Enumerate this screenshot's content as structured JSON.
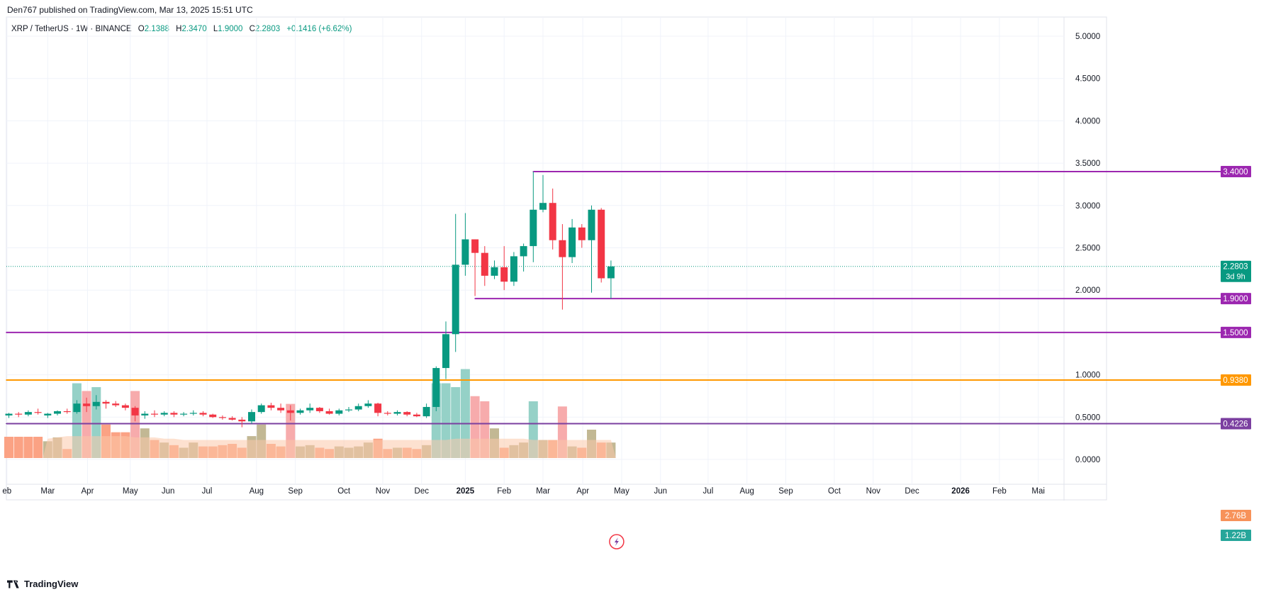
{
  "header": {
    "publisher_line": "Den767 published on TradingView.com, Mar 13, 2025 15:51 UTC"
  },
  "legend": {
    "symbol": "XRP / TetherUS · 1W · BINANCE",
    "open_label": "O",
    "open": "2.1388",
    "high_label": "H",
    "high": "2.3470",
    "low_label": "L",
    "low": "1.9000",
    "close_label": "C",
    "close": "2.2803",
    "change": "+0.1416 (+6.62%)"
  },
  "footer": {
    "brand": "TradingView"
  },
  "colors": {
    "up": "#089981",
    "down": "#f23645",
    "vol_up": "#8fcfc4",
    "vol_down": "#f7a6a8",
    "vol_up_dim": "#bfb48e",
    "vol_down_dim": "#fb9d7d",
    "vol_ma_fill": "#fcc8a9",
    "purple": "#9c27b0",
    "dark_purple": "#7b3fa0",
    "orange": "#ff9800",
    "grid": "#f0f3fa"
  },
  "chart_data": {
    "type": "candlestick",
    "title": "XRP / TetherUS · 1W · BINANCE",
    "ylim": [
      -0.5,
      5.3
    ],
    "y_ticks": [
      "5.0000",
      "4.5000",
      "4.0000",
      "3.5000",
      "3.0000",
      "2.5000",
      "2.0000",
      "1.0000",
      "0.5000",
      "0.0000"
    ],
    "y_tick_values": [
      5.0,
      4.5,
      4.0,
      3.5,
      3.0,
      2.5,
      2.0,
      1.0,
      0.5,
      0.0
    ],
    "x_labels": [
      "eb",
      "Mar",
      "Apr",
      "May",
      "Jun",
      "Jul",
      "Aug",
      "Sep",
      "Oct",
      "Nov",
      "Dec",
      "2025",
      "Feb",
      "Mar",
      "Apr",
      "May",
      "Jun",
      "Jul",
      "Aug",
      "Sep",
      "Oct",
      "Nov",
      "Dec",
      "2026",
      "Feb",
      "Mai"
    ],
    "x_label_bold": [
      false,
      false,
      false,
      false,
      false,
      false,
      false,
      false,
      false,
      false,
      false,
      true,
      false,
      false,
      false,
      false,
      false,
      false,
      false,
      false,
      false,
      false,
      false,
      true,
      false,
      false
    ],
    "x_label_week_index": [
      -4.2,
      0,
      4.1,
      8.5,
      12.4,
      16.4,
      21.5,
      25.5,
      30.5,
      34.5,
      38.5,
      43,
      47,
      51,
      55.1,
      59.1,
      63.1,
      68,
      72,
      76,
      81,
      85,
      89,
      94,
      98,
      102
    ],
    "candles": [
      [
        0.52,
        0.55,
        0.49,
        0.54
      ],
      [
        0.54,
        0.58,
        0.52,
        0.57
      ],
      [
        0.57,
        0.6,
        0.54,
        0.56
      ],
      [
        0.56,
        0.7,
        0.54,
        0.66
      ],
      [
        0.66,
        0.73,
        0.56,
        0.63
      ],
      [
        0.63,
        0.76,
        0.59,
        0.68
      ],
      [
        0.68,
        0.7,
        0.6,
        0.66
      ],
      [
        0.66,
        0.69,
        0.62,
        0.64
      ],
      [
        0.64,
        0.66,
        0.58,
        0.61
      ],
      [
        0.61,
        0.63,
        0.45,
        0.52
      ],
      [
        0.52,
        0.57,
        0.48,
        0.54
      ],
      [
        0.54,
        0.58,
        0.5,
        0.53
      ],
      [
        0.53,
        0.57,
        0.51,
        0.55
      ],
      [
        0.55,
        0.57,
        0.5,
        0.53
      ],
      [
        0.53,
        0.56,
        0.51,
        0.54
      ],
      [
        0.54,
        0.58,
        0.52,
        0.55
      ],
      [
        0.55,
        0.57,
        0.51,
        0.53
      ],
      [
        0.53,
        0.54,
        0.49,
        0.5
      ],
      [
        0.5,
        0.52,
        0.47,
        0.49
      ],
      [
        0.49,
        0.51,
        0.46,
        0.47
      ],
      [
        0.47,
        0.5,
        0.38,
        0.45
      ],
      [
        0.45,
        0.59,
        0.42,
        0.56
      ],
      [
        0.56,
        0.66,
        0.54,
        0.64
      ],
      [
        0.64,
        0.67,
        0.58,
        0.61
      ],
      [
        0.61,
        0.66,
        0.55,
        0.58
      ],
      [
        0.58,
        0.64,
        0.46,
        0.55
      ],
      [
        0.55,
        0.6,
        0.53,
        0.58
      ],
      [
        0.58,
        0.66,
        0.55,
        0.61
      ],
      [
        0.61,
        0.62,
        0.55,
        0.57
      ],
      [
        0.57,
        0.6,
        0.53,
        0.54
      ],
      [
        0.54,
        0.6,
        0.52,
        0.58
      ],
      [
        0.58,
        0.62,
        0.56,
        0.59
      ],
      [
        0.59,
        0.66,
        0.57,
        0.63
      ],
      [
        0.63,
        0.7,
        0.61,
        0.66
      ],
      [
        0.66,
        0.67,
        0.51,
        0.55
      ],
      [
        0.55,
        0.57,
        0.52,
        0.54
      ],
      [
        0.54,
        0.58,
        0.52,
        0.56
      ],
      [
        0.56,
        0.57,
        0.51,
        0.53
      ],
      [
        0.53,
        0.55,
        0.5,
        0.51
      ],
      [
        0.51,
        0.66,
        0.49,
        0.62
      ],
      [
        0.62,
        1.1,
        0.57,
        1.08
      ],
      [
        1.08,
        1.63,
        0.95,
        1.48
      ],
      [
        1.48,
        2.9,
        1.27,
        2.3
      ],
      [
        2.3,
        2.91,
        2.17,
        2.6
      ],
      [
        2.6,
        2.6,
        1.93,
        2.44
      ],
      [
        2.44,
        2.52,
        2.05,
        2.17
      ],
      [
        2.17,
        2.35,
        2.13,
        2.27
      ],
      [
        2.27,
        2.52,
        2.0,
        2.1
      ],
      [
        2.1,
        2.45,
        2.05,
        2.4
      ],
      [
        2.4,
        2.55,
        2.22,
        2.52
      ],
      [
        2.52,
        3.4,
        2.33,
        2.95
      ],
      [
        2.95,
        3.36,
        2.92,
        3.03
      ],
      [
        3.03,
        3.2,
        2.48,
        2.59
      ],
      [
        2.59,
        2.78,
        1.77,
        2.39
      ],
      [
        2.39,
        2.84,
        2.32,
        2.74
      ],
      [
        2.74,
        2.78,
        2.5,
        2.59
      ],
      [
        2.59,
        3.0,
        1.97,
        2.95
      ],
      [
        2.95,
        2.97,
        2.09,
        2.14
      ],
      [
        2.14,
        2.35,
        1.9,
        2.28
      ]
    ],
    "volume_scale_max": 0.55,
    "volumes_norm": [
      0.13,
      0.16,
      0.07,
      0.58,
      0.52,
      0.55,
      0.26,
      0.2,
      0.2,
      0.52,
      0.23,
      0.14,
      0.12,
      0.1,
      0.08,
      0.12,
      0.09,
      0.09,
      0.1,
      0.11,
      0.08,
      0.17,
      0.26,
      0.11,
      0.09,
      0.42,
      0.09,
      0.1,
      0.08,
      0.07,
      0.09,
      0.08,
      0.09,
      0.12,
      0.15,
      0.07,
      0.08,
      0.08,
      0.07,
      0.1,
      0.58,
      0.58,
      0.55,
      0.69,
      0.48,
      0.44,
      0.23,
      0.08,
      0.1,
      0.12,
      0.44,
      0.14,
      0.14,
      0.4,
      0.09,
      0.08,
      0.22,
      0.12,
      0.12
    ],
    "volume_ma_norm": [
      0.15,
      0.16,
      0.17,
      0.17,
      0.17,
      0.17,
      0.17,
      0.17,
      0.17,
      0.16,
      0.16,
      0.16,
      0.15,
      0.15,
      0.14,
      0.14,
      0.14,
      0.14,
      0.14,
      0.14,
      0.14,
      0.14,
      0.14,
      0.14,
      0.14,
      0.14,
      0.14,
      0.14,
      0.14,
      0.14,
      0.14,
      0.14,
      0.14,
      0.14,
      0.14,
      0.14,
      0.14,
      0.14,
      0.14,
      0.14,
      0.14,
      0.14,
      0.15,
      0.15,
      0.15,
      0.15,
      0.15,
      0.15,
      0.15,
      0.15,
      0.14,
      0.14,
      0.14,
      0.14,
      0.14,
      0.14,
      0.14,
      0.14,
      0.14
    ],
    "levels": [
      {
        "value": 3.4,
        "label": "3.4000",
        "color": "#9c27b0",
        "start_week": 50
      },
      {
        "value": 1.9,
        "label": "1.9000",
        "color": "#9c27b0",
        "start_week": 44
      },
      {
        "value": 1.5,
        "label": "1.5000",
        "color": "#9c27b0",
        "start_week": -7
      },
      {
        "value": 0.938,
        "label": "0.9380",
        "color": "#ff9800",
        "start_week": -7
      },
      {
        "value": 0.4226,
        "label": "0.4226",
        "color": "#7b3fa0",
        "start_week": -7
      }
    ],
    "current_price": {
      "value": 2.2803,
      "label": "2.2803",
      "countdown": "3d 9h"
    },
    "volume_labels": [
      {
        "label": "2.76B",
        "color": "#f7925a"
      },
      {
        "label": "1.22B",
        "color": "#26a69a"
      }
    ]
  }
}
